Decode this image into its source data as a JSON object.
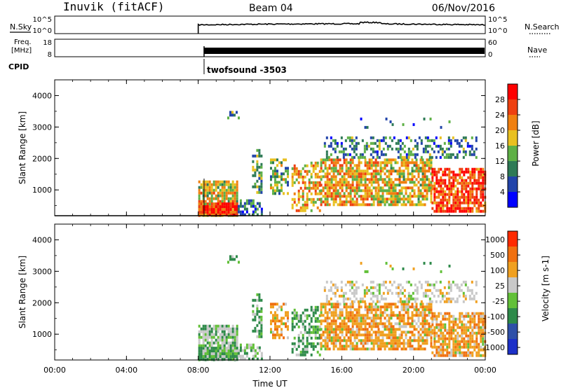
{
  "header": {
    "station": "Inuvik (fitACF)",
    "beam": "Beam 04",
    "date": "06/Nov/2016"
  },
  "top_panels": {
    "nsky": {
      "label": "N.Sky",
      "right_label": "N.Search",
      "y_ticks": [
        "10^5",
        "10^0"
      ],
      "right_ticks": [
        "10^5",
        "10^0"
      ]
    },
    "freq": {
      "label_line1": "Freq.",
      "label_line2": "[MHz]",
      "right_label": "Nave",
      "y_ticks": [
        "18",
        "8"
      ],
      "right_ticks": [
        "60",
        "0"
      ]
    },
    "cpid": {
      "label": "CPID",
      "program": "twofsound -3503"
    }
  },
  "chart_data": [
    {
      "type": "heatmap",
      "parameter": "Power",
      "ylabel": "Slant Range [km]",
      "y_ticks": [
        "1000",
        "2000",
        "3000",
        "4000"
      ],
      "ylim": [
        180,
        4500
      ],
      "colorbar": {
        "label": "Power [dB]",
        "ticks": [
          "4",
          "8",
          "12",
          "16",
          "20",
          "24",
          "28"
        ],
        "range": [
          0,
          32
        ],
        "colors": [
          "#0000ff",
          "#2244aa",
          "#2e7a56",
          "#5eb046",
          "#e8c020",
          "#f08010",
          "#ee4010",
          "#ff0000"
        ]
      }
    },
    {
      "type": "heatmap",
      "parameter": "Velocity",
      "ylabel": "Slant Range [km]",
      "xlabel": "Time UT",
      "x_ticks": [
        "00:00",
        "04:00",
        "08:00",
        "12:00",
        "16:00",
        "20:00",
        "00:00"
      ],
      "y_ticks": [
        "1000",
        "2000",
        "3000",
        "4000"
      ],
      "ylim": [
        180,
        4500
      ],
      "colorbar": {
        "label": "Velocity [m s-1]",
        "ticks": [
          "1000",
          "500",
          "100",
          "25",
          "-25",
          "-100",
          "-500",
          "-1000"
        ],
        "colors": [
          "#1c30c8",
          "#2f50a8",
          "#2e8a4a",
          "#62c038",
          "#c8c8c8",
          "#f0a020",
          "#f07010",
          "#ff2a00"
        ]
      }
    }
  ]
}
